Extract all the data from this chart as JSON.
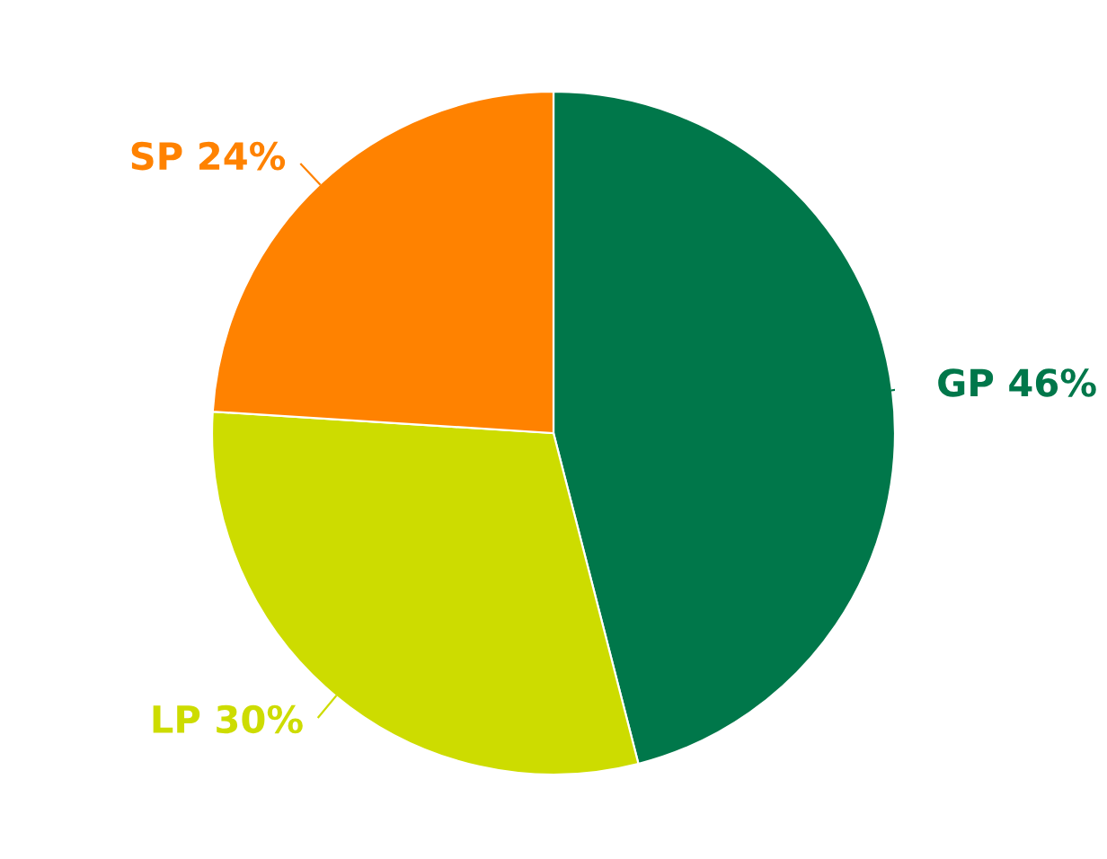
{
  "chart_data": {
    "type": "pie",
    "categories": [
      "GP",
      "LP",
      "SP"
    ],
    "values": [
      46,
      30,
      24
    ],
    "value_labels": [
      "46%",
      "30%",
      "24%"
    ],
    "colors": [
      "#00774a",
      "#cddc00",
      "#ff8200"
    ]
  }
}
